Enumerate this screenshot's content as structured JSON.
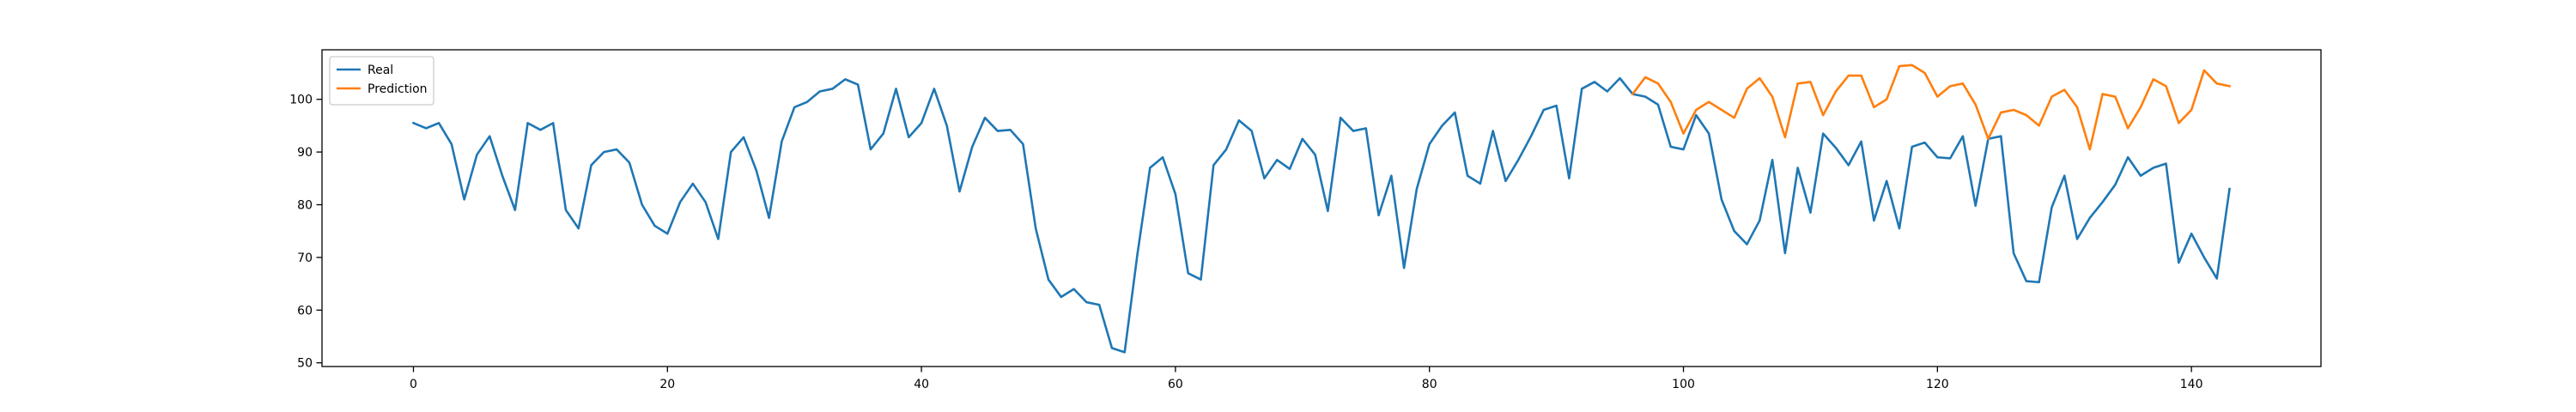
{
  "chart_data": {
    "type": "line",
    "title": "",
    "xlabel": "",
    "ylabel": "",
    "xlim": [
      -7.2,
      150.2
    ],
    "ylim": [
      49.3,
      109.4
    ],
    "xticks": [
      0,
      20,
      40,
      60,
      80,
      100,
      120,
      140
    ],
    "yticks": [
      50,
      60,
      70,
      80,
      90,
      100
    ],
    "grid": false,
    "legend_position": "top-left",
    "series": [
      {
        "name": "Real",
        "color": "#1f77b4",
        "x_start": 0,
        "values": [
          95.5,
          94.5,
          95.5,
          91.5,
          81.0,
          89.5,
          93.0,
          85.5,
          79.0,
          95.5,
          94.2,
          95.5,
          79.0,
          75.5,
          87.5,
          90.0,
          90.5,
          88.0,
          80.0,
          76.0,
          74.5,
          80.5,
          84.0,
          80.5,
          73.5,
          90.0,
          92.8,
          86.5,
          77.5,
          92.0,
          98.5,
          99.5,
          101.5,
          102.0,
          103.8,
          102.8,
          90.5,
          93.5,
          102.0,
          92.8,
          95.5,
          102.0,
          95.0,
          82.5,
          91.0,
          96.5,
          94.0,
          94.2,
          91.5,
          75.5,
          65.8,
          62.5,
          64.0,
          61.5,
          61.0,
          52.8,
          52.0,
          70.5,
          87.0,
          89.0,
          82.0,
          67.0,
          65.8,
          87.5,
          90.5,
          96.0,
          94.0,
          85.0,
          88.5,
          86.8,
          92.5,
          89.5,
          78.8,
          96.5,
          94.0,
          94.5,
          78.0,
          85.5,
          68.0,
          83.0,
          91.5,
          95.0,
          97.5,
          85.5,
          84.0,
          94.0,
          84.5,
          88.5,
          93.0,
          98.0,
          98.8,
          85.0,
          102.0,
          103.3,
          101.5,
          104.0,
          101.0,
          100.5,
          99.0,
          91.0,
          90.5,
          97.0,
          93.5,
          81.0,
          75.0,
          72.5,
          77.0,
          88.5,
          70.8,
          87.0,
          78.5,
          93.5,
          90.8,
          87.5,
          92.0,
          77.0,
          84.5,
          75.5,
          91.0,
          91.8,
          89.0,
          88.8,
          93.0,
          79.8,
          92.5,
          93.0,
          70.8,
          65.5,
          65.3,
          79.5,
          85.5,
          73.5,
          77.5,
          80.5,
          83.8,
          89.0,
          85.5,
          87.0,
          87.8,
          69.0,
          74.5,
          70.0,
          66.0,
          83.0
        ]
      },
      {
        "name": "Prediction",
        "color": "#ff7f0e",
        "x_start": 96,
        "values": [
          101.0,
          104.2,
          103.0,
          99.5,
          93.5,
          98.0,
          99.5,
          98.0,
          96.5,
          102.0,
          104.0,
          100.5,
          92.8,
          103.0,
          103.3,
          97.0,
          101.5,
          104.5,
          104.5,
          98.5,
          100.0,
          106.3,
          106.5,
          105.0,
          100.5,
          102.5,
          103.0,
          99.0,
          92.5,
          97.5,
          98.0,
          97.0,
          95.0,
          100.5,
          101.8,
          98.5,
          90.5,
          101.0,
          100.5,
          94.5,
          98.5,
          103.8,
          102.5,
          95.5,
          98.0,
          105.5,
          103.0,
          102.5
        ]
      }
    ]
  }
}
